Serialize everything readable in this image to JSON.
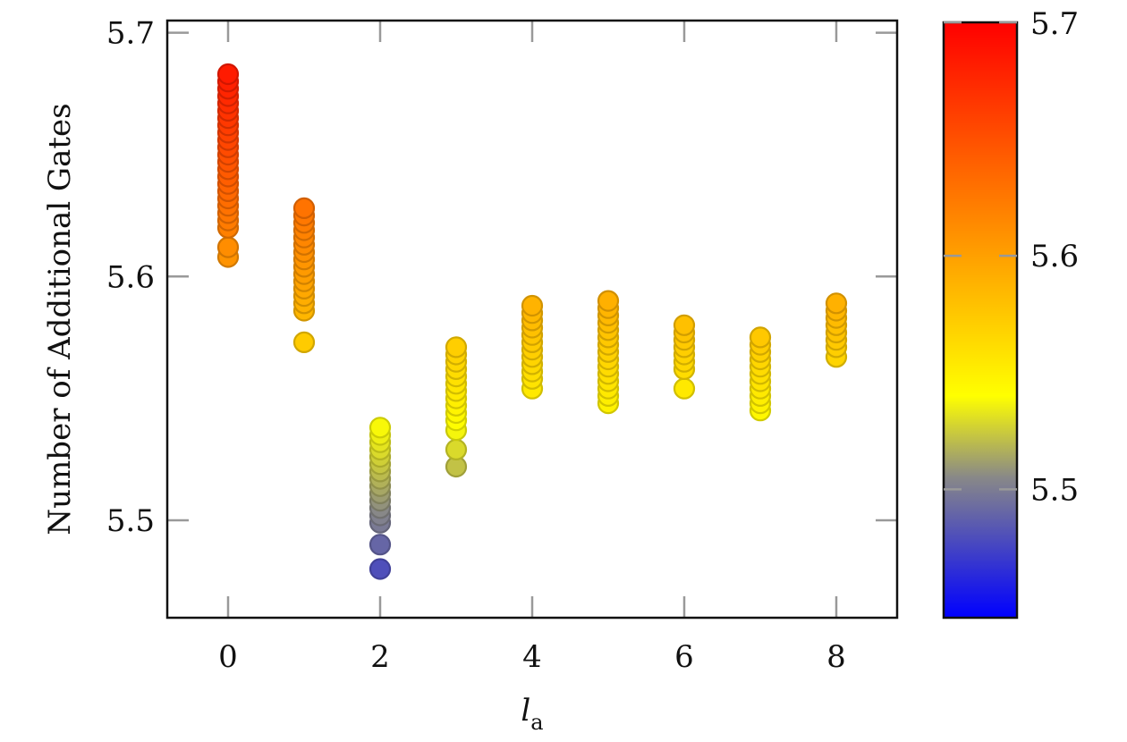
{
  "chart_data": {
    "type": "scatter",
    "xlabel": "l",
    "xlabel_sub": "a",
    "ylabel": "Number of Additional Gates",
    "xlim": [
      -0.8,
      8.8
    ],
    "ylim": [
      5.46,
      5.705
    ],
    "xticks": [
      0,
      2,
      4,
      6,
      8
    ],
    "yticks": [
      5.5,
      5.6,
      5.7
    ],
    "colorbar": {
      "range": [
        5.445,
        5.7
      ],
      "ticks": [
        5.5,
        5.6,
        5.7
      ],
      "colormap": [
        {
          "value": 5.445,
          "color": "#0000ff"
        },
        {
          "value": 5.505,
          "color": "#888888"
        },
        {
          "value": 5.54,
          "color": "#ffff00"
        },
        {
          "value": 5.6,
          "color": "#ffa000"
        },
        {
          "value": 5.7,
          "color": "#ff0000"
        }
      ]
    },
    "grid": false,
    "points": [
      {
        "x": 0,
        "y": [
          5.683,
          5.68,
          5.677,
          5.674,
          5.671,
          5.668,
          5.665,
          5.662,
          5.659,
          5.656,
          5.653,
          5.65,
          5.647,
          5.644,
          5.641,
          5.638,
          5.635,
          5.632,
          5.629,
          5.626,
          5.623,
          5.62,
          5.612,
          5.608
        ]
      },
      {
        "x": 1,
        "y": [
          5.628,
          5.625,
          5.622,
          5.619,
          5.616,
          5.613,
          5.61,
          5.607,
          5.604,
          5.601,
          5.598,
          5.595,
          5.592,
          5.589,
          5.586,
          5.573
        ]
      },
      {
        "x": 2,
        "y": [
          5.538,
          5.535,
          5.532,
          5.529,
          5.526,
          5.523,
          5.52,
          5.517,
          5.514,
          5.511,
          5.508,
          5.505,
          5.502,
          5.499,
          5.49,
          5.48
        ]
      },
      {
        "x": 3,
        "y": [
          5.571,
          5.568,
          5.565,
          5.562,
          5.559,
          5.556,
          5.553,
          5.55,
          5.547,
          5.544,
          5.541,
          5.537,
          5.529,
          5.522
        ]
      },
      {
        "x": 4,
        "y": [
          5.588,
          5.585,
          5.582,
          5.579,
          5.576,
          5.573,
          5.57,
          5.567,
          5.564,
          5.561,
          5.558,
          5.554
        ]
      },
      {
        "x": 5,
        "y": [
          5.59,
          5.587,
          5.584,
          5.581,
          5.578,
          5.575,
          5.572,
          5.569,
          5.566,
          5.563,
          5.56,
          5.557,
          5.554,
          5.551,
          5.548
        ]
      },
      {
        "x": 6,
        "y": [
          5.58,
          5.577,
          5.574,
          5.571,
          5.568,
          5.565,
          5.562,
          5.554
        ]
      },
      {
        "x": 7,
        "y": [
          5.575,
          5.572,
          5.569,
          5.566,
          5.563,
          5.56,
          5.557,
          5.554,
          5.551,
          5.548,
          5.545
        ]
      },
      {
        "x": 8,
        "y": [
          5.589,
          5.586,
          5.583,
          5.58,
          5.577,
          5.574,
          5.571,
          5.567
        ]
      }
    ]
  }
}
